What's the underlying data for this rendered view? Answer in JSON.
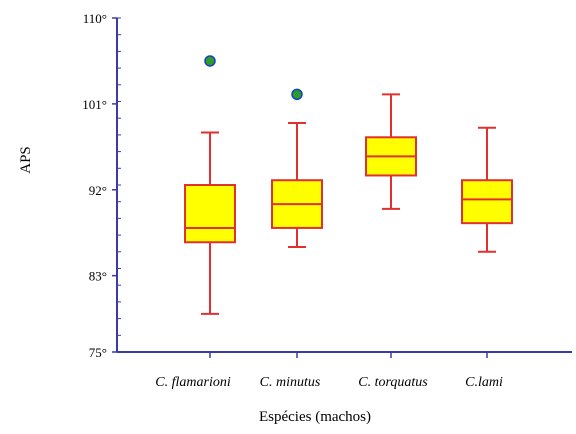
{
  "chart_data": {
    "type": "boxplot",
    "title": "",
    "xlabel": "Espécies (machos)",
    "ylabel": "APS",
    "ylim": [
      75,
      110
    ],
    "yticks": [
      {
        "value": 75,
        "label": "75°"
      },
      {
        "value": 83,
        "label": "83°"
      },
      {
        "value": 92,
        "label": "92°"
      },
      {
        "value": 101,
        "label": "101°"
      },
      {
        "value": 110,
        "label": "110°"
      }
    ],
    "categories": [
      "C. flamarioni",
      "C. minutus",
      "C. torquatus",
      "C.lami"
    ],
    "series": [
      {
        "category": "C. flamarioni",
        "min": 79,
        "q1": 86.5,
        "median": 88,
        "q3": 92.5,
        "max": 98,
        "outliers": [
          105.5
        ]
      },
      {
        "category": "C. minutus",
        "min": 86,
        "q1": 88,
        "median": 90.5,
        "q3": 93,
        "max": 99,
        "outliers": [
          102
        ]
      },
      {
        "category": "C. torquatus",
        "min": 90,
        "q1": 93.5,
        "median": 95.5,
        "q3": 97.5,
        "max": 102,
        "outliers": []
      },
      {
        "category": "C.lami",
        "min": 85.5,
        "q1": 88.5,
        "median": 91,
        "q3": 93,
        "max": 98.5,
        "outliers": []
      }
    ],
    "grid": false,
    "legend": "none",
    "colors": {
      "box_fill": "#ffff00",
      "box_stroke": "#e03030",
      "outlier_fill": "#2a9d2a",
      "outlier_stroke": "#1a3fbf",
      "axis": "#3a3aa8"
    }
  }
}
